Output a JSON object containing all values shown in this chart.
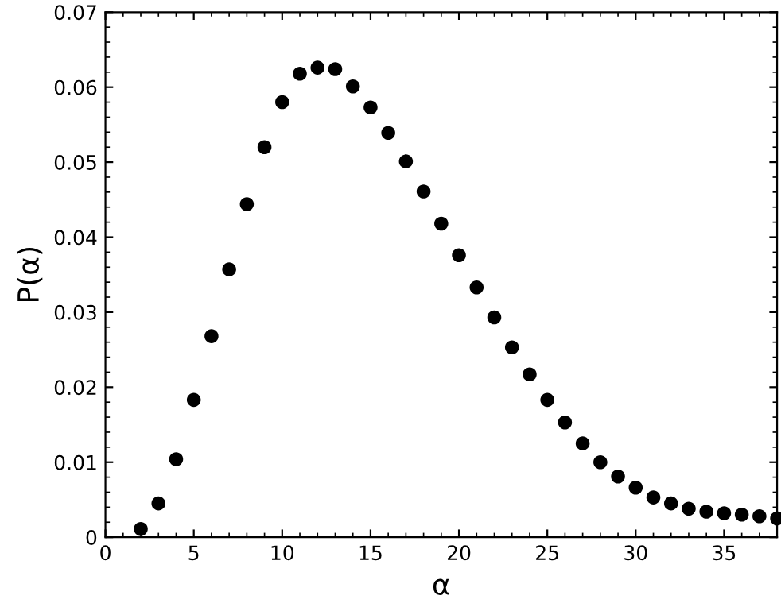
{
  "chart_data": {
    "type": "scatter",
    "xlabel": "α",
    "ylabel": "P(α)",
    "x": [
      2,
      3,
      4,
      5,
      6,
      7,
      8,
      9,
      10,
      11,
      12,
      13,
      14,
      15,
      16,
      17,
      18,
      19,
      20,
      21,
      22,
      23,
      24,
      25,
      26,
      27,
      28,
      29,
      30,
      31,
      32,
      33,
      34,
      35,
      36,
      37,
      38
    ],
    "values": [
      0.0011,
      0.0045,
      0.0104,
      0.0183,
      0.0268,
      0.0357,
      0.0444,
      0.052,
      0.058,
      0.0618,
      0.0626,
      0.0624,
      0.0601,
      0.0573,
      0.0539,
      0.0501,
      0.0461,
      0.0418,
      0.0376,
      0.0333,
      0.0293,
      0.0253,
      0.0217,
      0.0183,
      0.0153,
      0.0125,
      0.01,
      0.0081,
      0.0066,
      0.0053,
      0.0045,
      0.0038,
      0.0034,
      0.0032,
      0.003,
      0.0028,
      0.0025
    ],
    "color": "#000000",
    "marker": "circle",
    "xlim": [
      0,
      38
    ],
    "xticks": [
      0,
      5,
      10,
      15,
      20,
      25,
      30,
      35
    ],
    "ylim": [
      0,
      0.07
    ],
    "yticks": [
      0,
      0.01,
      0.02,
      0.03,
      0.04,
      0.05,
      0.06,
      0.07
    ],
    "grid": false,
    "legend": false
  }
}
